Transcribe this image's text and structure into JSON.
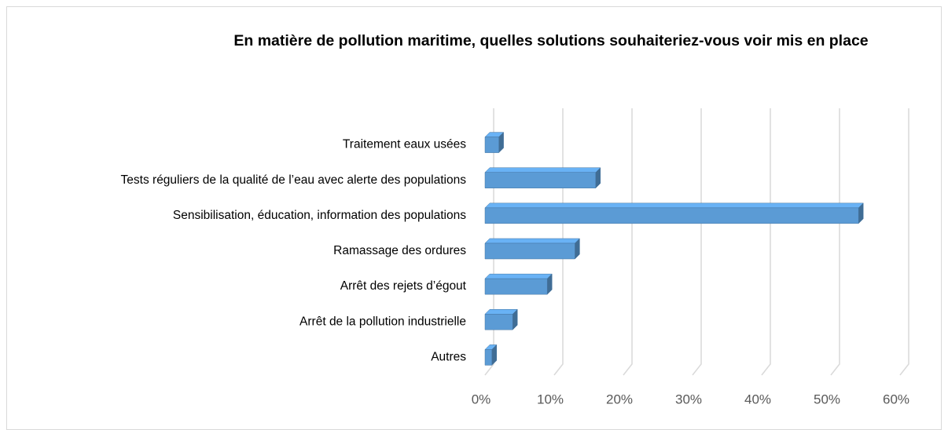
{
  "chart_data": {
    "type": "bar3d_horizontal",
    "title": "En matière de pollution maritime, quelles solutions souhaiteriez-vous voir mis en place",
    "categories": [
      "Traitement eaux usées",
      "Tests réguliers de la qualité de l’eau avec alerte des populations",
      "Sensibilisation, éducation, information des populations",
      "Ramassage des ordures",
      "Arrêt des rejets d’égout",
      "Arrêt de la pollution industrielle",
      "Autres"
    ],
    "values": [
      2,
      16,
      54,
      13,
      9,
      4,
      1
    ],
    "color": "#5b9bd5",
    "xlim": [
      0,
      60
    ],
    "xticks": [
      {
        "value": 0,
        "label": "0%"
      },
      {
        "value": 10,
        "label": "10%"
      },
      {
        "value": 20,
        "label": "20%"
      },
      {
        "value": 30,
        "label": "30%"
      },
      {
        "value": 40,
        "label": "40%"
      },
      {
        "value": 50,
        "label": "50%"
      },
      {
        "value": 60,
        "label": "60%"
      }
    ],
    "grid": true
  }
}
